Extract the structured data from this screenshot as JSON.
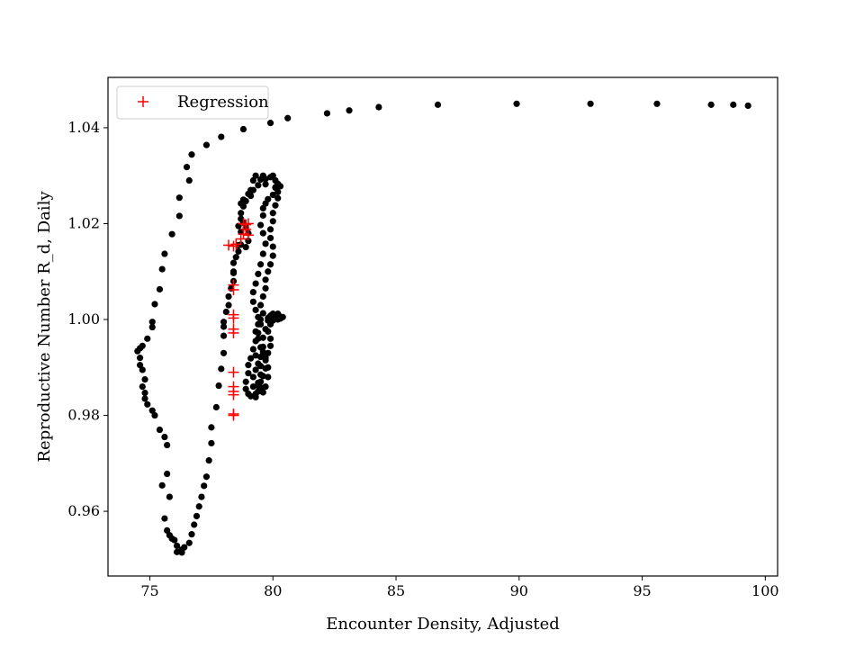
{
  "chart_data": {
    "type": "scatter",
    "title": "",
    "xlabel": "Encounter Density, Adjusted",
    "ylabel": "Reproductive Number R_d, Daily",
    "xlim": [
      73.3,
      100.5
    ],
    "ylim": [
      0.9465,
      1.0505
    ],
    "xticks": [
      75,
      80,
      85,
      90,
      95,
      100
    ],
    "yticks": [
      0.96,
      0.98,
      1.0,
      1.02,
      1.04
    ],
    "xtick_labels": [
      "75",
      "80",
      "85",
      "90",
      "95",
      "100"
    ],
    "ytick_labels": [
      "0.96",
      "0.98",
      "1.00",
      "1.02",
      "1.04"
    ],
    "grid": false,
    "legend": {
      "position": "top-left"
    },
    "series": [
      {
        "marker": "dot",
        "color": "#000000",
        "points": [
          [
            99.3,
            1.0446
          ],
          [
            98.7,
            1.0448
          ],
          [
            97.8,
            1.0448
          ],
          [
            95.6,
            1.045
          ],
          [
            92.9,
            1.045
          ],
          [
            89.9,
            1.045
          ],
          [
            86.7,
            1.0448
          ],
          [
            84.3,
            1.0443
          ],
          [
            83.1,
            1.0436
          ],
          [
            82.2,
            1.043
          ],
          [
            80.6,
            1.042
          ],
          [
            79.9,
            1.041
          ],
          [
            78.8,
            1.0397
          ],
          [
            77.9,
            1.0381
          ],
          [
            77.3,
            1.0364
          ],
          [
            76.7,
            1.0344
          ],
          [
            76.5,
            1.0318
          ],
          [
            76.6,
            1.029
          ],
          [
            76.2,
            1.0254
          ],
          [
            76.2,
            1.0216
          ],
          [
            75.9,
            1.0178
          ],
          [
            75.6,
            1.0137
          ],
          [
            75.5,
            1.0105
          ],
          [
            75.4,
            1.0063
          ],
          [
            75.2,
            1.0032
          ],
          [
            75.1,
            0.9995
          ],
          [
            75.1,
            0.9984
          ],
          [
            74.9,
            0.996
          ],
          [
            74.7,
            0.9945
          ],
          [
            74.6,
            0.994
          ],
          [
            74.5,
            0.9934
          ],
          [
            74.6,
            0.992
          ],
          [
            74.6,
            0.9905
          ],
          [
            74.7,
            0.9895
          ],
          [
            74.8,
            0.9875
          ],
          [
            74.7,
            0.986
          ],
          [
            74.8,
            0.9847
          ],
          [
            74.8,
            0.9835
          ],
          [
            74.9,
            0.9823
          ],
          [
            75.1,
            0.981
          ],
          [
            75.2,
            0.98
          ],
          [
            75.4,
            0.977
          ],
          [
            75.6,
            0.9755
          ],
          [
            75.7,
            0.9738
          ],
          [
            75.5,
            0.9654
          ],
          [
            75.7,
            0.9678
          ],
          [
            75.8,
            0.963
          ],
          [
            75.6,
            0.9585
          ],
          [
            75.7,
            0.956
          ],
          [
            75.9,
            0.9543
          ],
          [
            75.8,
            0.955
          ],
          [
            76.0,
            0.954
          ],
          [
            76.1,
            0.9528
          ],
          [
            76.1,
            0.9515
          ],
          [
            76.3,
            0.952
          ],
          [
            76.3,
            0.9514
          ],
          [
            76.4,
            0.9525
          ],
          [
            76.6,
            0.9534
          ],
          [
            76.7,
            0.9552
          ],
          [
            76.8,
            0.9572
          ],
          [
            76.9,
            0.959
          ],
          [
            77.0,
            0.961
          ],
          [
            77.1,
            0.963
          ],
          [
            77.2,
            0.9653
          ],
          [
            77.3,
            0.9672
          ],
          [
            77.4,
            0.9706
          ],
          [
            77.5,
            0.9742
          ],
          [
            77.5,
            0.9775
          ],
          [
            77.7,
            0.9817
          ],
          [
            77.8,
            0.9862
          ],
          [
            77.9,
            0.9897
          ],
          [
            78.0,
            0.993
          ],
          [
            78.0,
            0.9966
          ],
          [
            78.0,
            0.9995
          ],
          [
            78.2,
            1.003
          ],
          [
            78.3,
            1.0065
          ],
          [
            78.4,
            1.0097
          ],
          [
            78.5,
            1.013
          ],
          [
            78.6,
            1.0155
          ],
          [
            78.7,
            1.0183
          ],
          [
            78.8,
            1.0202
          ],
          [
            78.7,
            1.0222
          ],
          [
            78.7,
            1.0242
          ],
          [
            78.9,
            1.0247
          ],
          [
            79.1,
            1.0258
          ],
          [
            79.2,
            1.027
          ],
          [
            79.4,
            1.028
          ],
          [
            79.5,
            1.0292
          ],
          [
            79.6,
            1.03
          ],
          [
            79.7,
            1.0293
          ],
          [
            79.7,
            1.0282
          ],
          [
            79.9,
            1.0297
          ],
          [
            80.0,
            1.03
          ],
          [
            80.1,
            1.029
          ],
          [
            80.1,
            1.0276
          ],
          [
            80.0,
            1.026
          ],
          [
            79.8,
            1.0251
          ],
          [
            79.7,
            1.0242
          ],
          [
            79.6,
            1.0232
          ],
          [
            79.6,
            1.0217
          ],
          [
            79.5,
            1.0197
          ],
          [
            79.6,
            1.018
          ],
          [
            79.7,
            1.0158
          ],
          [
            79.6,
            1.0137
          ],
          [
            79.5,
            1.0115
          ],
          [
            79.4,
            1.0095
          ],
          [
            79.3,
            1.0075
          ],
          [
            79.2,
            1.0057
          ],
          [
            79.2,
            1.0037
          ],
          [
            79.3,
            1.002
          ],
          [
            79.4,
            1.0005
          ],
          [
            79.5,
            0.999
          ],
          [
            79.4,
            0.9972
          ],
          [
            79.3,
            0.9955
          ],
          [
            79.2,
            0.9938
          ],
          [
            79.1,
            0.9919
          ],
          [
            79.0,
            0.9905
          ],
          [
            79.0,
            0.9888
          ],
          [
            78.9,
            0.987
          ],
          [
            78.9,
            0.9855
          ],
          [
            79.0,
            0.9845
          ],
          [
            79.1,
            0.984
          ],
          [
            79.3,
            0.9838
          ],
          [
            79.4,
            0.985
          ],
          [
            79.4,
            0.9868
          ],
          [
            79.5,
            0.9885
          ],
          [
            79.5,
            0.9903
          ],
          [
            79.5,
            0.9922
          ],
          [
            79.6,
            0.9943
          ],
          [
            79.6,
            0.9962
          ],
          [
            79.7,
            0.998
          ],
          [
            79.8,
            0.9998
          ],
          [
            79.9,
            1.0008
          ],
          [
            80.0,
            1.0012
          ],
          [
            80.2,
            1.0008
          ],
          [
            80.3,
            1.0006
          ],
          [
            80.2,
            1.0
          ],
          [
            80.0,
            0.9998
          ],
          [
            79.9,
            0.999
          ],
          [
            79.8,
            0.9975
          ],
          [
            79.9,
            0.996
          ],
          [
            79.9,
            0.9945
          ],
          [
            79.8,
            0.993
          ],
          [
            79.7,
            0.9915
          ],
          [
            79.7,
            0.9898
          ],
          [
            79.6,
            0.9882
          ],
          [
            79.5,
            0.987
          ],
          [
            79.5,
            0.9858
          ],
          [
            79.6,
            0.9848
          ],
          [
            79.7,
            0.986
          ],
          [
            79.8,
            0.988
          ],
          [
            79.8,
            0.99
          ],
          [
            79.7,
            0.992
          ],
          [
            79.6,
            0.9932
          ],
          [
            79.6,
            1.0013
          ],
          [
            79.5,
            1.003
          ],
          [
            79.6,
            1.0048
          ],
          [
            79.7,
            1.0065
          ],
          [
            79.7,
            1.0083
          ],
          [
            79.8,
            1.01
          ],
          [
            79.9,
            1.0115
          ],
          [
            80.0,
            1.0133
          ],
          [
            80.0,
            1.0152
          ],
          [
            79.9,
            1.017
          ],
          [
            79.9,
            1.0188
          ],
          [
            80.0,
            1.0205
          ],
          [
            80.0,
            1.0222
          ],
          [
            80.1,
            1.0238
          ],
          [
            80.2,
            1.0253
          ],
          [
            80.2,
            1.0266
          ],
          [
            80.1,
            1.0275
          ],
          [
            80.2,
            1.0283
          ],
          [
            80.3,
            1.0278
          ],
          [
            79.3,
            1.03
          ],
          [
            79.2,
            1.029
          ],
          [
            79.1,
            1.027
          ],
          [
            79.0,
            1.0262
          ],
          [
            78.8,
            1.025
          ],
          [
            78.8,
            1.0236
          ],
          [
            78.7,
            1.021
          ],
          [
            78.6,
            1.0195
          ],
          [
            78.9,
            1.0192
          ],
          [
            79.0,
            1.018
          ],
          [
            79.0,
            1.0164
          ],
          [
            78.9,
            1.0151
          ],
          [
            78.7,
            1.0156
          ],
          [
            78.6,
            1.0142
          ],
          [
            78.4,
            1.0118
          ],
          [
            78.4,
            1.01
          ],
          [
            78.4,
            1.008
          ],
          [
            78.2,
            1.0048
          ],
          [
            78.1,
            1.0016
          ],
          [
            78.0,
            0.9985
          ],
          [
            79.4,
            0.9862
          ],
          [
            79.3,
            0.9845
          ],
          [
            79.2,
            0.986
          ],
          [
            79.2,
            0.988
          ],
          [
            79.3,
            0.9895
          ],
          [
            79.4,
            0.9908
          ],
          [
            79.3,
            0.9925
          ],
          [
            79.5,
            0.9942
          ],
          [
            79.4,
            0.996
          ],
          [
            79.3,
            0.9975
          ],
          [
            79.4,
            0.999
          ],
          [
            79.5,
            1.0
          ],
          [
            79.8,
            1.0003
          ],
          [
            80.1,
            1.0003
          ],
          [
            80.2,
            1.0012
          ],
          [
            80.4,
            1.0005
          ],
          [
            80.3,
            1.0002
          ]
        ]
      },
      {
        "name": "Regression",
        "marker": "plus",
        "color": "#ff0000",
        "points": [
          [
            78.2,
            1.0155
          ],
          [
            78.4,
            1.0153
          ],
          [
            78.5,
            1.0157
          ],
          [
            78.7,
            1.0168
          ],
          [
            78.8,
            1.0178
          ],
          [
            78.9,
            1.0188
          ],
          [
            78.9,
            1.0198
          ],
          [
            79.0,
            1.02
          ],
          [
            78.8,
            1.02
          ],
          [
            79.0,
            1.0176
          ],
          [
            78.4,
            1.0072
          ],
          [
            78.4,
            1.0062
          ],
          [
            78.4,
            1.001
          ],
          [
            78.4,
            1.0003
          ],
          [
            78.4,
            0.998
          ],
          [
            78.4,
            0.9972
          ],
          [
            78.4,
            0.989
          ],
          [
            78.4,
            0.986
          ],
          [
            78.4,
            0.985
          ],
          [
            78.4,
            0.9843
          ],
          [
            78.4,
            0.9803
          ],
          [
            78.4,
            0.98
          ]
        ]
      }
    ]
  }
}
